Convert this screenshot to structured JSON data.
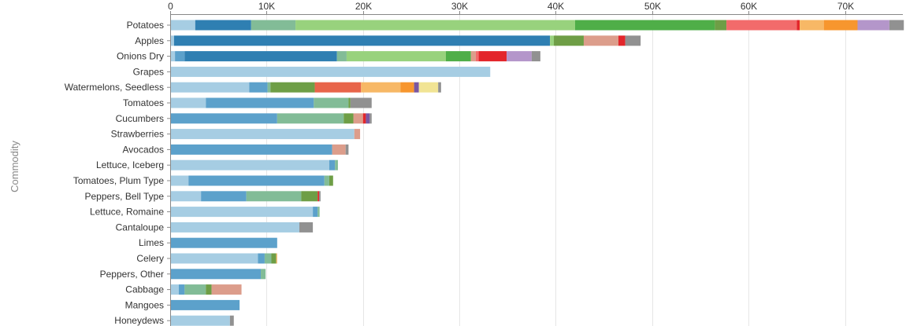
{
  "chart_data": {
    "type": "bar",
    "orientation": "horizontal",
    "stacked": true,
    "title": "",
    "xlabel": "",
    "ylabel": "Commodity",
    "xlim": [
      0,
      76000
    ],
    "x_ticks": [
      0,
      10000,
      20000,
      30000,
      40000,
      50000,
      60000,
      70000
    ],
    "x_tick_labels": [
      "0",
      "10K",
      "20K",
      "30K",
      "40K",
      "50K",
      "60K",
      "70K"
    ],
    "grid": true,
    "legend": "none",
    "palette": [
      "#a6cde3",
      "#2f7fb2",
      "#5ca1cb",
      "#82bc97",
      "#98d27d",
      "#4fae48",
      "#6e9e46",
      "#dc9d8b",
      "#f26b6b",
      "#e3262b",
      "#e8654a",
      "#f7b866",
      "#f7962e",
      "#f08a22",
      "#f1e494",
      "#7a57a1",
      "#b496ca",
      "#919191"
    ],
    "categories": [
      {
        "name": "Potatoes",
        "segments": [
          [
            2600,
            "#a6cde3"
          ],
          [
            5800,
            "#2f7fb2"
          ],
          [
            4600,
            "#82bc97"
          ],
          [
            29000,
            "#98d27d"
          ],
          [
            14500,
            "#4fae48"
          ],
          [
            1200,
            "#6e9e46"
          ],
          [
            7300,
            "#f26b6b"
          ],
          [
            300,
            "#e3262b"
          ],
          [
            2500,
            "#f7b866"
          ],
          [
            3500,
            "#f7962e"
          ],
          [
            3300,
            "#b496ca"
          ],
          [
            1500,
            "#919191"
          ]
        ]
      },
      {
        "name": "Apples",
        "segments": [
          [
            400,
            "#a6cde3"
          ],
          [
            39000,
            "#2f7fb2"
          ],
          [
            400,
            "#98d27d"
          ],
          [
            3100,
            "#6e9e46"
          ],
          [
            3600,
            "#dc9d8b"
          ],
          [
            700,
            "#e3262b"
          ],
          [
            1600,
            "#919191"
          ]
        ]
      },
      {
        "name": "Onions Dry",
        "segments": [
          [
            500,
            "#a6cde3"
          ],
          [
            1000,
            "#5ca1cb"
          ],
          [
            15800,
            "#2f7fb2"
          ],
          [
            1000,
            "#82bc97"
          ],
          [
            10300,
            "#98d27d"
          ],
          [
            2600,
            "#4fae48"
          ],
          [
            500,
            "#dc9d8b"
          ],
          [
            300,
            "#f26b6b"
          ],
          [
            2900,
            "#e3262b"
          ],
          [
            2600,
            "#b496ca"
          ],
          [
            900,
            "#919191"
          ]
        ]
      },
      {
        "name": "Grapes",
        "segments": [
          [
            33200,
            "#a6cde3"
          ]
        ]
      },
      {
        "name": "Watermelons, Seedless",
        "segments": [
          [
            8200,
            "#a6cde3"
          ],
          [
            1900,
            "#5ca1cb"
          ],
          [
            300,
            "#82bc97"
          ],
          [
            4600,
            "#6e9e46"
          ],
          [
            4800,
            "#e8654a"
          ],
          [
            4100,
            "#f7b866"
          ],
          [
            1400,
            "#f7962e"
          ],
          [
            500,
            "#7a57a1"
          ],
          [
            2000,
            "#f1e494"
          ],
          [
            300,
            "#919191"
          ]
        ]
      },
      {
        "name": "Tomatoes",
        "segments": [
          [
            3700,
            "#a6cde3"
          ],
          [
            11200,
            "#5ca1cb"
          ],
          [
            3600,
            "#82bc97"
          ],
          [
            200,
            "#6e9e46"
          ],
          [
            2200,
            "#919191"
          ]
        ]
      },
      {
        "name": "Cucumbers",
        "segments": [
          [
            11100,
            "#5ca1cb"
          ],
          [
            6900,
            "#82bc97"
          ],
          [
            1000,
            "#6e9e46"
          ],
          [
            1000,
            "#dc9d8b"
          ],
          [
            300,
            "#e3262b"
          ],
          [
            400,
            "#7a57a1"
          ],
          [
            200,
            "#919191"
          ]
        ]
      },
      {
        "name": "Strawberries",
        "segments": [
          [
            19100,
            "#a6cde3"
          ],
          [
            600,
            "#dc9d8b"
          ]
        ]
      },
      {
        "name": "Avocados",
        "segments": [
          [
            16800,
            "#5ca1cb"
          ],
          [
            1400,
            "#dc9d8b"
          ],
          [
            300,
            "#919191"
          ]
        ]
      },
      {
        "name": "Lettuce, Iceberg",
        "segments": [
          [
            16500,
            "#a6cde3"
          ],
          [
            600,
            "#5ca1cb"
          ],
          [
            300,
            "#82bc97"
          ]
        ]
      },
      {
        "name": "Tomatoes, Plum Type",
        "segments": [
          [
            1900,
            "#a6cde3"
          ],
          [
            14100,
            "#5ca1cb"
          ],
          [
            500,
            "#82bc97"
          ],
          [
            400,
            "#6e9e46"
          ]
        ]
      },
      {
        "name": "Peppers, Bell Type",
        "segments": [
          [
            3200,
            "#a6cde3"
          ],
          [
            4700,
            "#5ca1cb"
          ],
          [
            5700,
            "#82bc97"
          ],
          [
            1700,
            "#6e9e46"
          ],
          [
            150,
            "#e3262b"
          ],
          [
            150,
            "#919191"
          ]
        ]
      },
      {
        "name": "Lettuce, Romaine",
        "segments": [
          [
            14800,
            "#a6cde3"
          ],
          [
            500,
            "#5ca1cb"
          ],
          [
            200,
            "#82bc97"
          ]
        ]
      },
      {
        "name": "Cantaloupe",
        "segments": [
          [
            13400,
            "#a6cde3"
          ],
          [
            1400,
            "#919191"
          ]
        ]
      },
      {
        "name": "Limes",
        "segments": [
          [
            11100,
            "#5ca1cb"
          ]
        ]
      },
      {
        "name": "Celery",
        "segments": [
          [
            9100,
            "#a6cde3"
          ],
          [
            700,
            "#5ca1cb"
          ],
          [
            700,
            "#82bc97"
          ],
          [
            500,
            "#6e9e46"
          ],
          [
            100,
            "#f7b866"
          ]
        ]
      },
      {
        "name": "Peppers, Other",
        "segments": [
          [
            9400,
            "#5ca1cb"
          ],
          [
            500,
            "#82bc97"
          ]
        ]
      },
      {
        "name": "Cabbage",
        "segments": [
          [
            900,
            "#a6cde3"
          ],
          [
            600,
            "#5ca1cb"
          ],
          [
            2200,
            "#82bc97"
          ],
          [
            600,
            "#6e9e46"
          ],
          [
            3100,
            "#dc9d8b"
          ]
        ]
      },
      {
        "name": "Mangoes",
        "segments": [
          [
            7200,
            "#5ca1cb"
          ]
        ]
      },
      {
        "name": "Honeydews",
        "segments": [
          [
            6200,
            "#a6cde3"
          ],
          [
            400,
            "#919191"
          ]
        ]
      }
    ]
  }
}
